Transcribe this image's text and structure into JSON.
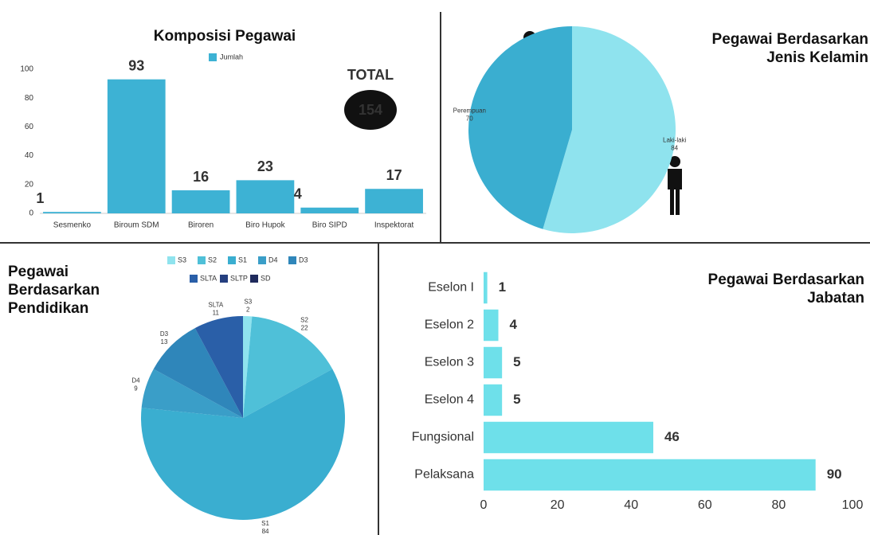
{
  "chart_data": [
    {
      "type": "bar",
      "title": "Komposisi Pegawai",
      "categories": [
        "Sesmenko",
        "Biroum SDM",
        "Biroren",
        "Biro Hupok",
        "Biro SIPD",
        "Inspektorat"
      ],
      "series": [
        {
          "name": "Jumlah",
          "color": "#3db2d4",
          "values": [
            1,
            93,
            16,
            23,
            4,
            17
          ]
        }
      ],
      "ylim": [
        0,
        100
      ],
      "yticks": [
        0,
        20,
        40,
        60,
        80,
        100
      ],
      "total_label": "TOTAL",
      "total_value": 154
    },
    {
      "type": "pie",
      "title": "Pegawai Berdasarkan Jenis Kelamin",
      "categories": [
        "Laki-laki",
        "Perempuan"
      ],
      "values": [
        84,
        70
      ],
      "colors": [
        "#8fe3ee",
        "#3aaed0"
      ]
    },
    {
      "type": "pie",
      "title": "Pegawai Berdasarkan Pendidikan",
      "categories": [
        "S3",
        "S2",
        "S1",
        "D4",
        "D3",
        "SLTA",
        "SLTP",
        "SD"
      ],
      "values": [
        2,
        22,
        84,
        9,
        13,
        11,
        0,
        0
      ],
      "colors": [
        "#8fe3ee",
        "#4fc0d8",
        "#3aaed0",
        "#3a9ec8",
        "#2f86ba",
        "#2a5fa8",
        "#253f7f",
        "#1f2a5c"
      ]
    },
    {
      "type": "bar",
      "horizontal": true,
      "title": "Pegawai Berdasarkan Jabatan",
      "categories": [
        "Eselon I",
        "Eselon 2",
        "Eselon 3",
        "Eselon 4",
        "Fungsional",
        "Pelaksana"
      ],
      "values": [
        1,
        4,
        5,
        5,
        46,
        90
      ],
      "color": "#6ee0ea",
      "xlim": [
        0,
        100
      ],
      "xticks": [
        0,
        20,
        40,
        60,
        80,
        100
      ]
    }
  ]
}
